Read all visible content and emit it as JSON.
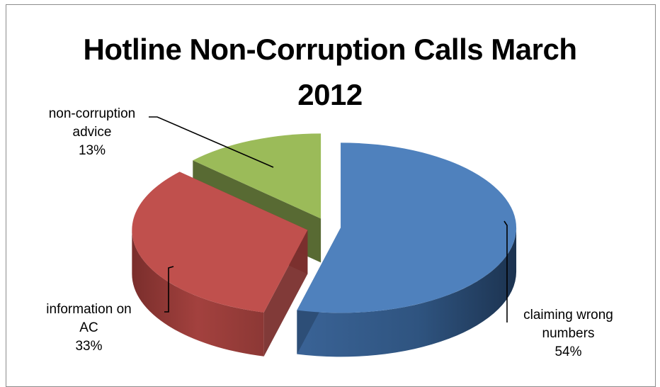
{
  "chart_data": {
    "type": "pie",
    "title_lines": [
      "Hotline Non-Corruption Calls March",
      "2012"
    ],
    "slices": [
      {
        "label_lines": [
          "claiming wrong",
          "numbers"
        ],
        "pct_label": "54%",
        "value": 54,
        "color": "#4f81bd",
        "side_color": "#2c4d75"
      },
      {
        "label_lines": [
          "information on",
          "AC"
        ],
        "pct_label": "33%",
        "value": 33,
        "color": "#c0504d",
        "side_color": "#7a2f2d"
      },
      {
        "label_lines": [
          "non-corruption",
          "advice"
        ],
        "pct_label": "13%",
        "value": 13,
        "color": "#9bbb59",
        "side_color": "#4f6228"
      }
    ],
    "exploded": true,
    "three_d": true,
    "legend": "none"
  }
}
